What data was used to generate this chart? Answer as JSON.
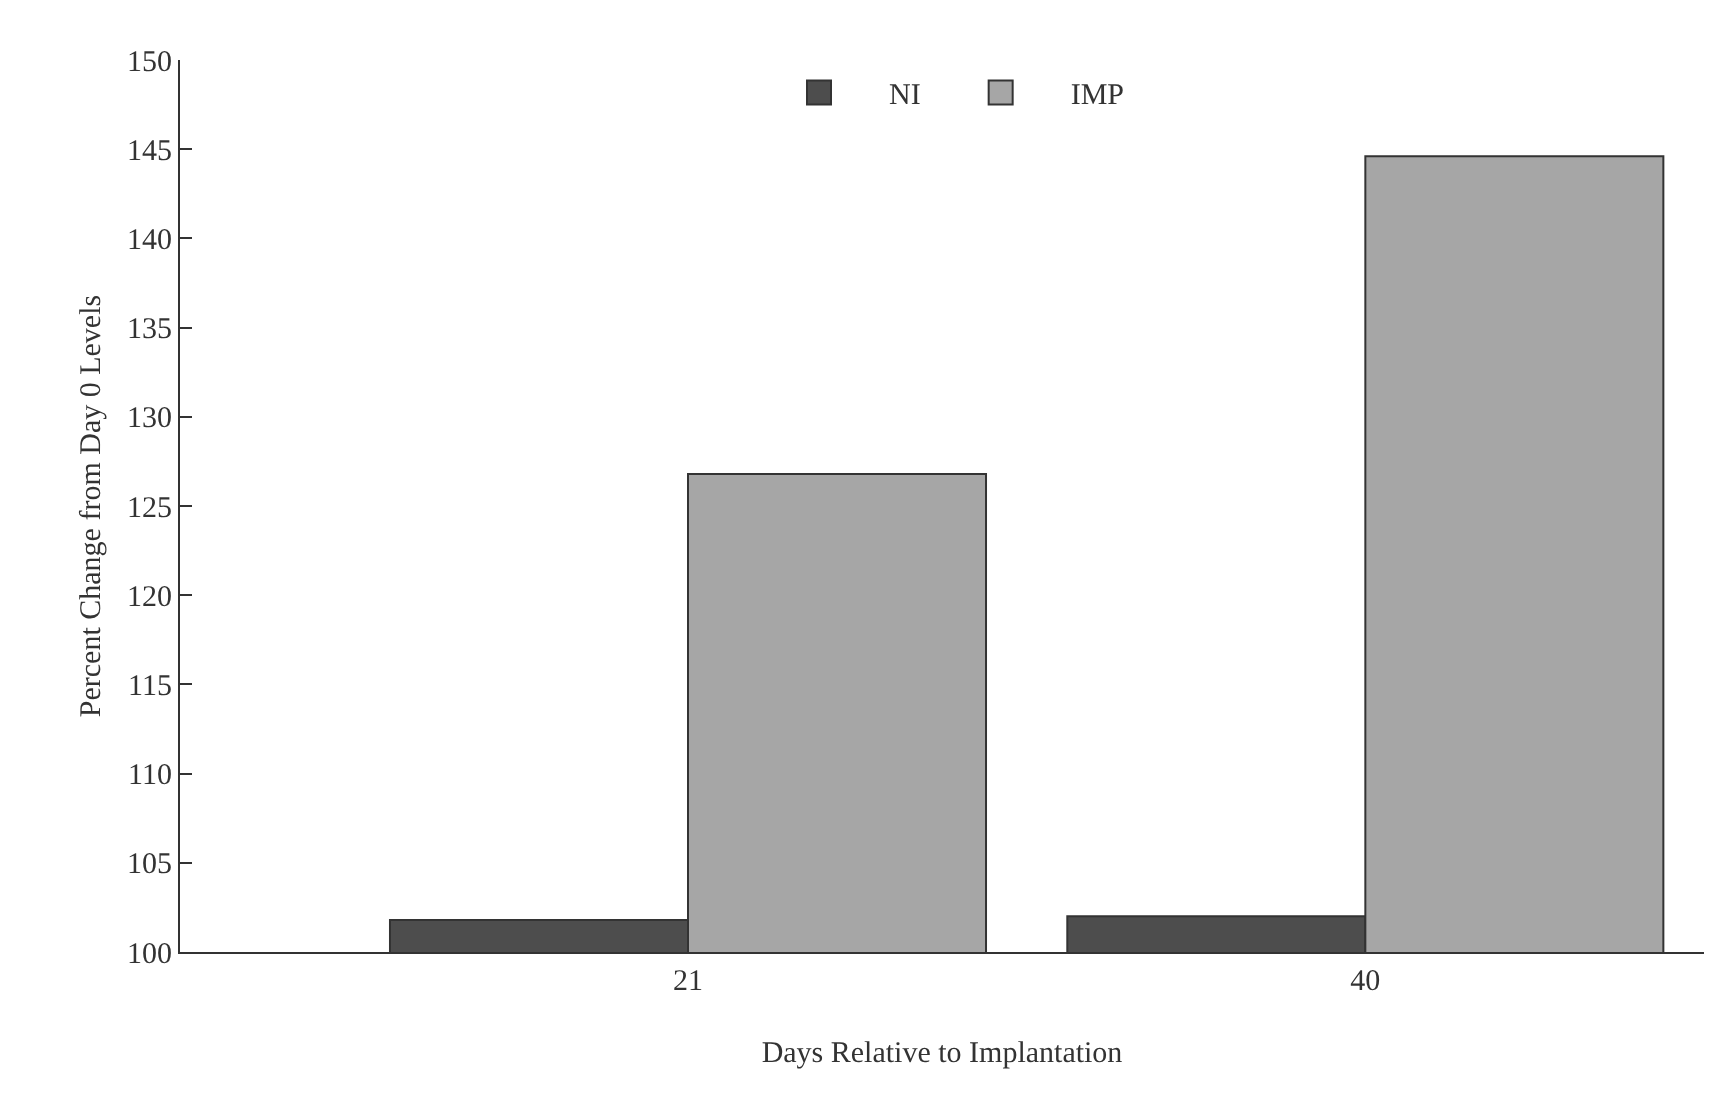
{
  "chart_data": {
    "type": "bar",
    "xlabel": "Days Relative to Implantation",
    "ylabel": "Percent Change from Day 0 Levels",
    "categories": [
      "21",
      "40"
    ],
    "series": [
      {
        "name": "NI",
        "color": "#4d4d4d",
        "values": [
          101.8,
          102
        ]
      },
      {
        "name": "IMP",
        "color": "#a6a6a6",
        "values": [
          126.8,
          144.6
        ]
      }
    ],
    "ylim": [
      100,
      150
    ],
    "yticks": [
      100,
      105,
      110,
      115,
      120,
      125,
      130,
      135,
      140,
      145,
      150
    ],
    "grid": false,
    "legend": "top"
  }
}
